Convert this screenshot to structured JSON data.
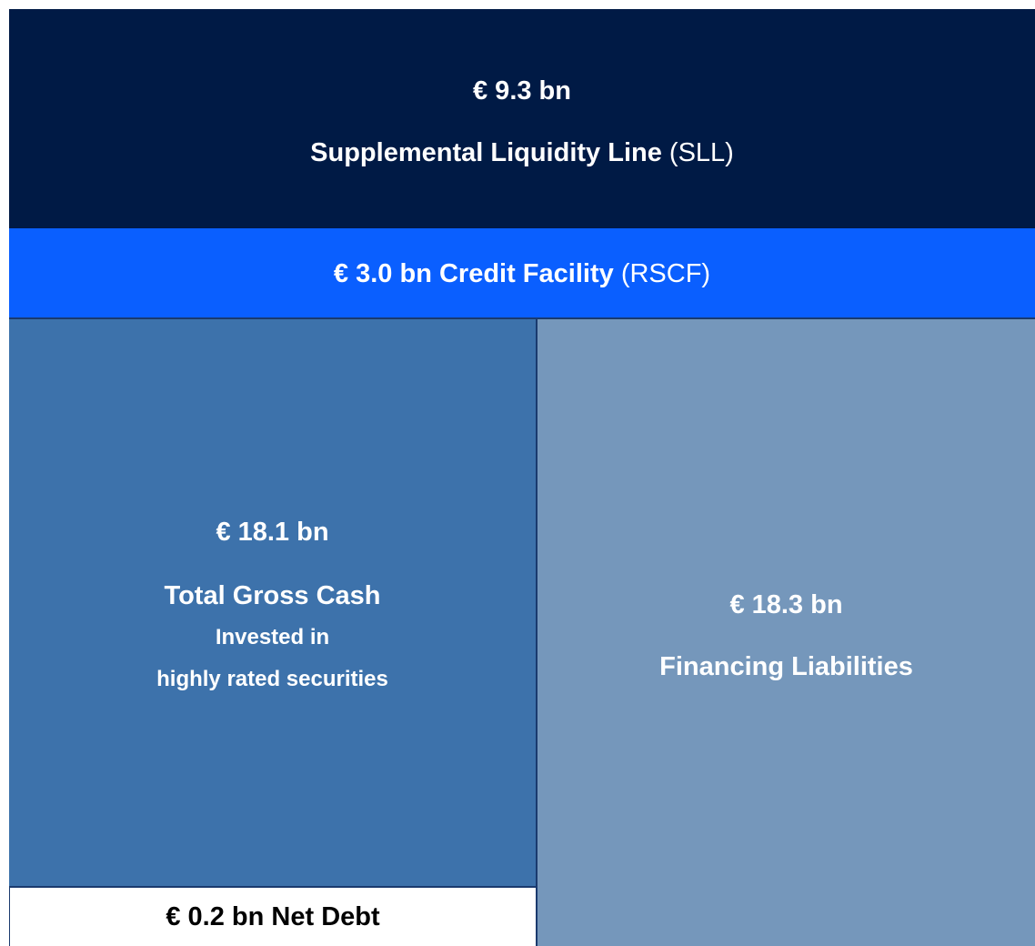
{
  "sll": {
    "amount": "€ 9.3 bn",
    "label": "Supplemental Liquidity Line",
    "abbr": "(SLL)"
  },
  "rscf": {
    "label": "€ 3.0 bn Credit Facility",
    "abbr": "(RSCF)"
  },
  "gross_cash": {
    "amount": "€ 18.1 bn",
    "label": "Total Gross Cash",
    "note_1": "Invested in",
    "note_2": "highly rated securities"
  },
  "liabilities": {
    "amount": "€ 18.3 bn",
    "label": "Financing Liabilities"
  },
  "net_debt": {
    "label": "€ 0.2 bn Net Debt"
  }
}
